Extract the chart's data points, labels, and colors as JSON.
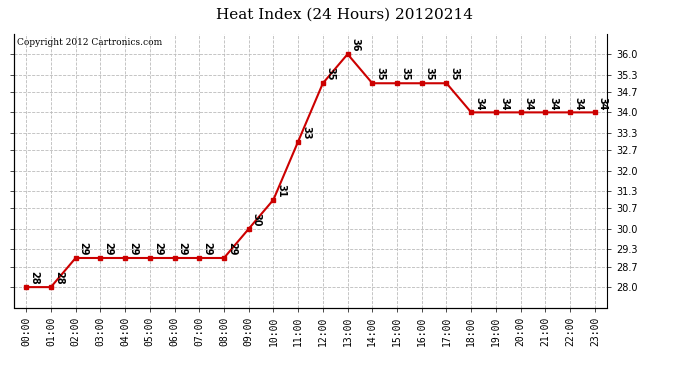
{
  "title": "Heat Index (24 Hours) 20120214",
  "copyright_text": "Copyright 2012 Cartronics.com",
  "hours": [
    "00:00",
    "01:00",
    "02:00",
    "03:00",
    "04:00",
    "05:00",
    "06:00",
    "07:00",
    "08:00",
    "09:00",
    "10:00",
    "11:00",
    "12:00",
    "13:00",
    "14:00",
    "15:00",
    "16:00",
    "17:00",
    "18:00",
    "19:00",
    "20:00",
    "21:00",
    "22:00",
    "23:00"
  ],
  "values": [
    28,
    28,
    29,
    29,
    29,
    29,
    29,
    29,
    29,
    30,
    31,
    33,
    35,
    36,
    35,
    35,
    35,
    35,
    34,
    34,
    34,
    34,
    34,
    34
  ],
  "line_color": "#cc0000",
  "marker_color": "#cc0000",
  "bg_color": "#ffffff",
  "plot_bg_color": "#ffffff",
  "grid_color": "#bbbbbb",
  "ylim_min": 27.3,
  "ylim_max": 36.7,
  "yticks": [
    28.0,
    28.7,
    29.3,
    30.0,
    30.7,
    31.3,
    32.0,
    32.7,
    33.3,
    34.0,
    34.7,
    35.3,
    36.0
  ],
  "title_fontsize": 11,
  "label_fontsize": 7,
  "annotation_fontsize": 7,
  "copyright_fontsize": 6.5
}
